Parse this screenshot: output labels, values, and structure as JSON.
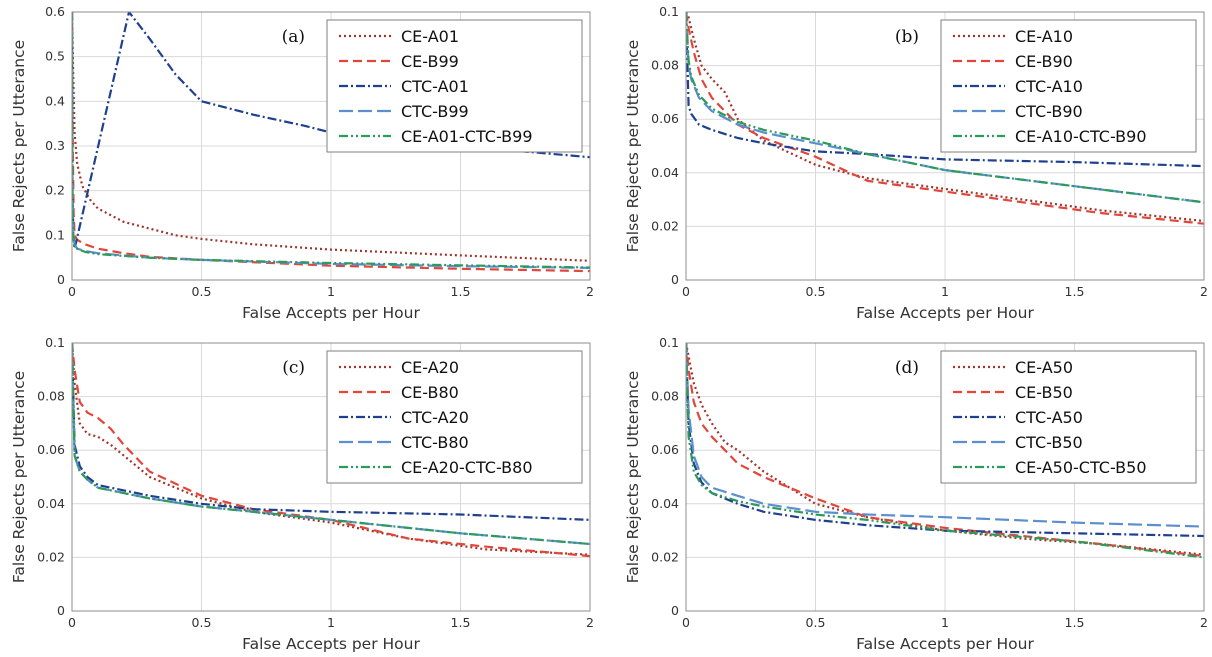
{
  "chart_data": [
    {
      "type": "line",
      "panel_label": "(a)",
      "xlabel": "False Accepts per Hour",
      "ylabel": "False Rejects per Utterance",
      "xlim": [
        0,
        2
      ],
      "ylim": [
        0,
        0.6
      ],
      "xticks": [
        0,
        0.5,
        1,
        1.5,
        2
      ],
      "xtick_labels": [
        "0",
        "0.5",
        "1",
        "1.5",
        "2"
      ],
      "yticks": [
        0,
        0.1,
        0.2,
        0.3,
        0.4,
        0.5,
        0.6
      ],
      "ytick_labels": [
        "0",
        "0.1",
        "0.2",
        "0.3",
        "0.4",
        "0.5",
        "0.6"
      ],
      "grid": true,
      "legend_position": "top-right",
      "series": [
        {
          "name": "CE-A01",
          "color": "#a0342a",
          "dash": "dotted",
          "x": [
            0,
            0.005,
            0.01,
            0.02,
            0.04,
            0.07,
            0.1,
            0.15,
            0.2,
            0.3,
            0.4,
            0.5,
            0.7,
            1.0,
            1.5,
            2.0
          ],
          "y": [
            0.6,
            0.45,
            0.33,
            0.26,
            0.21,
            0.18,
            0.16,
            0.145,
            0.13,
            0.115,
            0.1,
            0.092,
            0.08,
            0.068,
            0.055,
            0.043
          ]
        },
        {
          "name": "CE-B99",
          "color": "#e0463a",
          "dash": "dashed",
          "x": [
            0,
            0.003,
            0.006,
            0.01,
            0.02,
            0.05,
            0.1,
            0.2,
            0.3,
            0.5,
            1.0,
            1.5,
            2.0
          ],
          "y": [
            0.6,
            0.3,
            0.15,
            0.1,
            0.09,
            0.08,
            0.07,
            0.06,
            0.052,
            0.045,
            0.032,
            0.025,
            0.02
          ]
        },
        {
          "name": "CTC-A01",
          "color": "#1f3f8f",
          "dash": "dashdot",
          "x": [
            0,
            0.002,
            0.005,
            0.01,
            0.22,
            0.3,
            0.4,
            0.5,
            0.7,
            0.9,
            1.0,
            1.2,
            1.5,
            1.8,
            2.0
          ],
          "y": [
            0.6,
            0.2,
            0.1,
            0.07,
            0.6,
            0.54,
            0.46,
            0.4,
            0.37,
            0.345,
            0.33,
            0.31,
            0.3,
            0.285,
            0.275
          ]
        },
        {
          "name": "CTC-B99",
          "color": "#5b8fd0",
          "dash": "longdash",
          "x": [
            0,
            0.002,
            0.005,
            0.01,
            0.02,
            0.05,
            0.1,
            0.3,
            0.5,
            1.0,
            1.5,
            2.0
          ],
          "y": [
            0.6,
            0.2,
            0.1,
            0.08,
            0.07,
            0.065,
            0.06,
            0.05,
            0.045,
            0.036,
            0.031,
            0.027
          ]
        },
        {
          "name": "CE-A01-CTC-B99",
          "color": "#2b9a5a",
          "dash": "dashdotdot",
          "x": [
            0,
            0.002,
            0.005,
            0.01,
            0.02,
            0.05,
            0.1,
            0.3,
            0.5,
            1.0,
            1.5,
            2.0
          ],
          "y": [
            0.6,
            0.2,
            0.1,
            0.075,
            0.07,
            0.063,
            0.058,
            0.05,
            0.045,
            0.038,
            0.033,
            0.028
          ]
        }
      ]
    },
    {
      "type": "line",
      "panel_label": "(b)",
      "xlabel": "False Accepts per Hour",
      "ylabel": "False Rejects per Utterance",
      "xlim": [
        0,
        2
      ],
      "ylim": [
        0,
        0.1
      ],
      "xticks": [
        0,
        0.5,
        1,
        1.5,
        2
      ],
      "xtick_labels": [
        "0",
        "0.5",
        "1",
        "1.5",
        "2"
      ],
      "yticks": [
        0,
        0.02,
        0.04,
        0.06,
        0.08,
        0.1
      ],
      "ytick_labels": [
        "0",
        "0.02",
        "0.04",
        "0.06",
        "0.08",
        "0.1"
      ],
      "grid": true,
      "legend_position": "top-right",
      "series": [
        {
          "name": "CE-A10",
          "color": "#a0342a",
          "dash": "dotted",
          "x": [
            0,
            0.01,
            0.03,
            0.06,
            0.1,
            0.15,
            0.2,
            0.3,
            0.5,
            0.7,
            1.0,
            1.3,
            1.6,
            2.0
          ],
          "y": [
            0.1,
            0.098,
            0.09,
            0.08,
            0.075,
            0.07,
            0.06,
            0.052,
            0.043,
            0.038,
            0.034,
            0.03,
            0.026,
            0.022
          ]
        },
        {
          "name": "CE-B90",
          "color": "#e0463a",
          "dash": "dashed",
          "x": [
            0,
            0.01,
            0.03,
            0.06,
            0.1,
            0.15,
            0.2,
            0.3,
            0.5,
            0.7,
            1.0,
            1.3,
            1.6,
            2.0
          ],
          "y": [
            0.1,
            0.094,
            0.085,
            0.075,
            0.068,
            0.063,
            0.058,
            0.053,
            0.046,
            0.037,
            0.033,
            0.029,
            0.025,
            0.021
          ]
        },
        {
          "name": "CTC-A10",
          "color": "#1f3f8f",
          "dash": "dashdot",
          "x": [
            0,
            0.01,
            0.02,
            0.05,
            0.1,
            0.2,
            0.3,
            0.5,
            0.7,
            1.0,
            1.5,
            2.0
          ],
          "y": [
            0.1,
            0.065,
            0.062,
            0.058,
            0.056,
            0.053,
            0.051,
            0.048,
            0.047,
            0.045,
            0.044,
            0.0425
          ]
        },
        {
          "name": "CTC-B90",
          "color": "#5b8fd0",
          "dash": "longdash",
          "x": [
            0,
            0.01,
            0.02,
            0.05,
            0.1,
            0.2,
            0.3,
            0.5,
            0.7,
            1.0,
            1.5,
            2.0
          ],
          "y": [
            0.1,
            0.08,
            0.075,
            0.068,
            0.063,
            0.058,
            0.055,
            0.051,
            0.047,
            0.041,
            0.035,
            0.029
          ]
        },
        {
          "name": "CE-A10-CTC-B90",
          "color": "#2b9a5a",
          "dash": "dashdotdot",
          "x": [
            0,
            0.01,
            0.02,
            0.05,
            0.1,
            0.2,
            0.3,
            0.5,
            0.7,
            1.0,
            1.5,
            2.0
          ],
          "y": [
            0.1,
            0.082,
            0.076,
            0.069,
            0.064,
            0.059,
            0.056,
            0.052,
            0.047,
            0.041,
            0.035,
            0.029
          ]
        }
      ]
    },
    {
      "type": "line",
      "panel_label": "(c)",
      "xlabel": "False Accepts per Hour",
      "ylabel": "False Rejects per Utterance",
      "xlim": [
        0,
        2
      ],
      "ylim": [
        0,
        0.1
      ],
      "xticks": [
        0,
        0.5,
        1,
        1.5,
        2
      ],
      "xtick_labels": [
        "0",
        "0.5",
        "1",
        "1.5",
        "2"
      ],
      "yticks": [
        0,
        0.02,
        0.04,
        0.06,
        0.08,
        0.1
      ],
      "ytick_labels": [
        "0",
        "0.02",
        "0.04",
        "0.06",
        "0.08",
        "0.1"
      ],
      "grid": true,
      "legend_position": "top-right",
      "series": [
        {
          "name": "CE-A20",
          "color": "#a0342a",
          "dash": "dotted",
          "x": [
            0,
            0.01,
            0.03,
            0.06,
            0.1,
            0.15,
            0.2,
            0.3,
            0.5,
            0.7,
            1.0,
            1.3,
            1.6,
            2.0
          ],
          "y": [
            0.1,
            0.085,
            0.07,
            0.066,
            0.065,
            0.062,
            0.058,
            0.05,
            0.042,
            0.037,
            0.033,
            0.027,
            0.023,
            0.021
          ]
        },
        {
          "name": "CE-B80",
          "color": "#e0463a",
          "dash": "dashed",
          "x": [
            0,
            0.01,
            0.03,
            0.06,
            0.1,
            0.15,
            0.2,
            0.3,
            0.5,
            0.7,
            1.0,
            1.3,
            1.6,
            2.0
          ],
          "y": [
            0.1,
            0.09,
            0.078,
            0.074,
            0.072,
            0.068,
            0.062,
            0.052,
            0.043,
            0.038,
            0.034,
            0.027,
            0.024,
            0.0205
          ]
        },
        {
          "name": "CTC-A20",
          "color": "#1f3f8f",
          "dash": "dashdot",
          "x": [
            0,
            0.01,
            0.03,
            0.06,
            0.1,
            0.2,
            0.3,
            0.5,
            0.7,
            1.0,
            1.5,
            2.0
          ],
          "y": [
            0.1,
            0.062,
            0.054,
            0.05,
            0.047,
            0.045,
            0.043,
            0.04,
            0.038,
            0.037,
            0.036,
            0.034
          ]
        },
        {
          "name": "CTC-B80",
          "color": "#5b8fd0",
          "dash": "longdash",
          "x": [
            0,
            0.01,
            0.03,
            0.06,
            0.1,
            0.2,
            0.3,
            0.5,
            0.7,
            1.0,
            1.5,
            2.0
          ],
          "y": [
            0.1,
            0.058,
            0.052,
            0.049,
            0.046,
            0.044,
            0.042,
            0.039,
            0.037,
            0.034,
            0.029,
            0.025
          ]
        },
        {
          "name": "CE-A20-CTC-B80",
          "color": "#2b9a5a",
          "dash": "dashdotdot",
          "x": [
            0,
            0.01,
            0.03,
            0.06,
            0.1,
            0.2,
            0.3,
            0.5,
            0.7,
            1.0,
            1.5,
            2.0
          ],
          "y": [
            0.1,
            0.058,
            0.052,
            0.049,
            0.046,
            0.044,
            0.042,
            0.039,
            0.037,
            0.034,
            0.029,
            0.025
          ]
        }
      ]
    },
    {
      "type": "line",
      "panel_label": "(d)",
      "xlabel": "False Accepts per Hour",
      "ylabel": "False Rejects per Utterance",
      "xlim": [
        0,
        2
      ],
      "ylim": [
        0,
        0.1
      ],
      "xticks": [
        0,
        0.5,
        1,
        1.5,
        2
      ],
      "xtick_labels": [
        "0",
        "0.5",
        "1",
        "1.5",
        "2"
      ],
      "yticks": [
        0,
        0.02,
        0.04,
        0.06,
        0.08,
        0.1
      ],
      "ytick_labels": [
        "0",
        "0.02",
        "0.04",
        "0.06",
        "0.08",
        "0.1"
      ],
      "grid": true,
      "legend_position": "top-right",
      "series": [
        {
          "name": "CE-A50",
          "color": "#a0342a",
          "dash": "dotted",
          "x": [
            0,
            0.01,
            0.03,
            0.06,
            0.1,
            0.15,
            0.2,
            0.3,
            0.5,
            0.7,
            1.0,
            1.3,
            1.6,
            2.0
          ],
          "y": [
            0.1,
            0.095,
            0.085,
            0.077,
            0.07,
            0.063,
            0.06,
            0.052,
            0.04,
            0.035,
            0.03,
            0.027,
            0.025,
            0.021
          ]
        },
        {
          "name": "CE-B50",
          "color": "#e0463a",
          "dash": "dashed",
          "x": [
            0,
            0.01,
            0.03,
            0.06,
            0.1,
            0.15,
            0.2,
            0.3,
            0.5,
            0.7,
            1.0,
            1.3,
            1.6,
            2.0
          ],
          "y": [
            0.1,
            0.09,
            0.078,
            0.07,
            0.065,
            0.06,
            0.055,
            0.05,
            0.042,
            0.035,
            0.031,
            0.028,
            0.025,
            0.0205
          ]
        },
        {
          "name": "CTC-A50",
          "color": "#1f3f8f",
          "dash": "dashdot",
          "x": [
            0,
            0.01,
            0.03,
            0.06,
            0.1,
            0.2,
            0.3,
            0.5,
            0.7,
            1.0,
            1.5,
            2.0
          ],
          "y": [
            0.1,
            0.07,
            0.055,
            0.048,
            0.044,
            0.04,
            0.037,
            0.034,
            0.032,
            0.03,
            0.029,
            0.028
          ]
        },
        {
          "name": "CTC-B50",
          "color": "#5b8fd0",
          "dash": "longdash",
          "x": [
            0,
            0.01,
            0.03,
            0.06,
            0.1,
            0.2,
            0.3,
            0.5,
            0.7,
            1.0,
            1.5,
            2.0
          ],
          "y": [
            0.1,
            0.075,
            0.058,
            0.05,
            0.046,
            0.043,
            0.04,
            0.037,
            0.036,
            0.035,
            0.033,
            0.0315
          ]
        },
        {
          "name": "CE-A50-CTC-B50",
          "color": "#2b9a5a",
          "dash": "dashdotdot",
          "x": [
            0,
            0.01,
            0.03,
            0.06,
            0.1,
            0.2,
            0.3,
            0.5,
            0.7,
            1.0,
            1.5,
            2.0
          ],
          "y": [
            0.1,
            0.065,
            0.052,
            0.047,
            0.044,
            0.041,
            0.039,
            0.036,
            0.034,
            0.03,
            0.026,
            0.02
          ]
        }
      ]
    }
  ]
}
